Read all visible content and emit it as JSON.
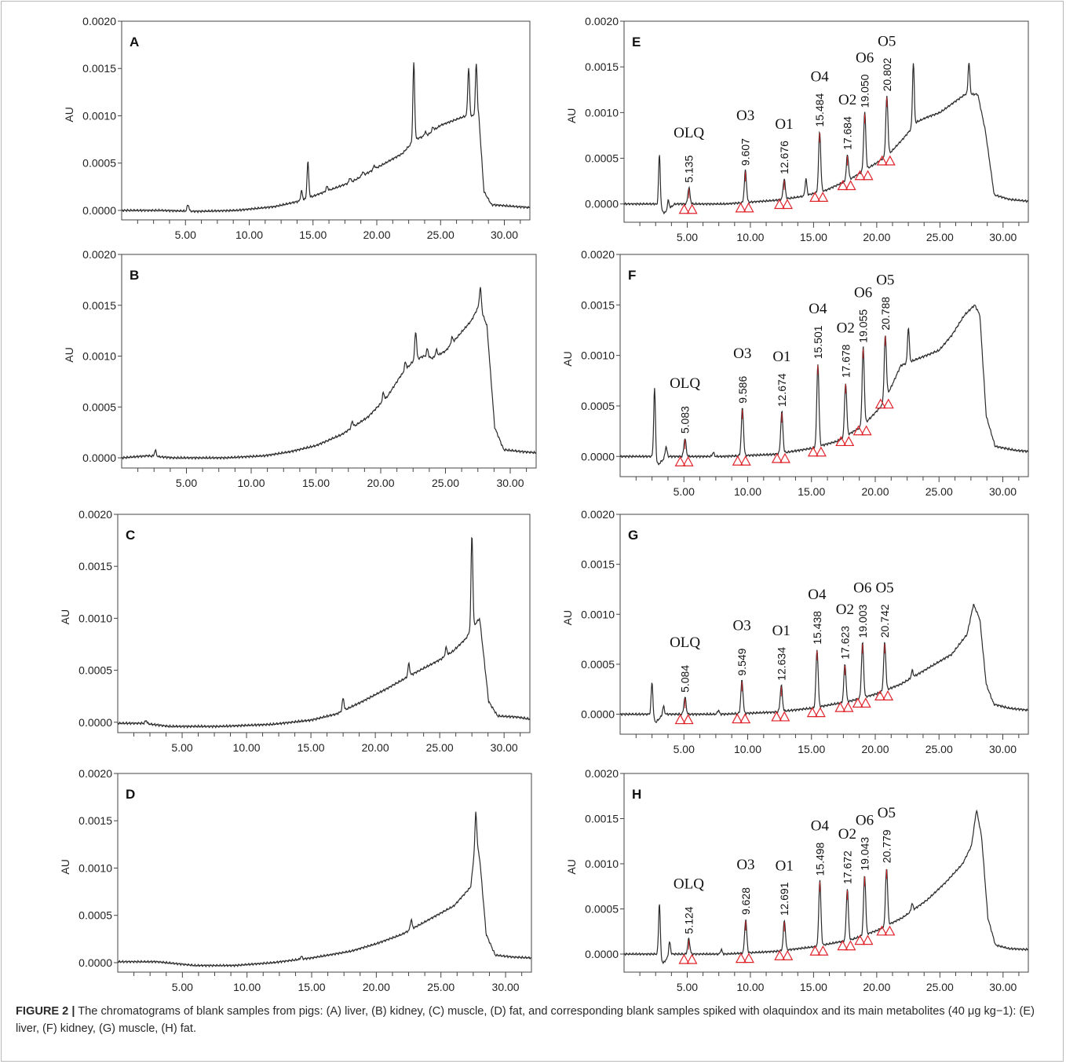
{
  "figure": {
    "caption_label": "FIGURE 2 |",
    "caption_text": "The chromatograms of blank samples from pigs: (A) liver, (B) kidney, (C) muscle, (D) fat, and corresponding blank samples spiked with olaquindox and its main metabolites (40 μg kg−1): (E) liver, (F) kidney, (G) muscle, (H) fat."
  },
  "colors": {
    "trace": "#2b2b2b",
    "marker": "#e0232b",
    "axis": "#444444"
  },
  "chart_data": [
    {
      "type": "line",
      "panel": "A",
      "ylabel": "AU",
      "xlim": [
        0,
        32
      ],
      "ylim": [
        -0.0001,
        0.002
      ],
      "xticks": [
        "5.00",
        "10.00",
        "15.00",
        "20.00",
        "25.00",
        "30.00"
      ],
      "yticks": [
        "0.0000",
        "0.0005",
        "0.0010",
        "0.0015",
        "0.0020"
      ],
      "baseline": [
        [
          0,
          0.0
        ],
        [
          3,
          0.0
        ],
        [
          6,
          -1e-05
        ],
        [
          9,
          0.0
        ],
        [
          12,
          4e-05
        ],
        [
          14,
          0.0001
        ],
        [
          15,
          0.00015
        ],
        [
          16,
          0.0002
        ],
        [
          18,
          0.0003
        ],
        [
          20,
          0.00045
        ],
        [
          22,
          0.0006
        ],
        [
          23,
          0.00075
        ],
        [
          24,
          0.0008
        ],
        [
          25,
          0.0009
        ],
        [
          26,
          0.00095
        ],
        [
          27,
          0.001
        ],
        [
          28,
          0.001
        ],
        [
          28.4,
          0.0002
        ],
        [
          29,
          6e-05
        ],
        [
          30,
          5e-05
        ],
        [
          32,
          3e-05
        ]
      ],
      "spikes": [
        [
          5.2,
          7e-05
        ],
        [
          14.1,
          0.0001
        ],
        [
          14.6,
          0.00038
        ],
        [
          16.1,
          5e-05
        ],
        [
          17.9,
          5e-05
        ],
        [
          18.9,
          4e-05
        ],
        [
          19.8,
          4e-05
        ],
        [
          22.9,
          0.00082
        ],
        [
          23.8,
          4e-05
        ],
        [
          24.4,
          4e-05
        ],
        [
          27.2,
          0.0005
        ],
        [
          27.8,
          0.00055
        ]
      ]
    },
    {
      "type": "line",
      "panel": "B",
      "ylabel": "AU",
      "xlim": [
        0,
        32
      ],
      "ylim": [
        -0.0001,
        0.002
      ],
      "xticks": [
        "5.00",
        "10.00",
        "15.00",
        "20.00",
        "25.00",
        "30.00"
      ],
      "yticks": [
        "0.0000",
        "0.0005",
        "0.0010",
        "0.0015",
        "0.0020"
      ],
      "baseline": [
        [
          0,
          0.0
        ],
        [
          2,
          2e-05
        ],
        [
          4,
          0.0
        ],
        [
          8,
          0.0
        ],
        [
          11,
          2e-05
        ],
        [
          13,
          6e-05
        ],
        [
          15,
          0.00012
        ],
        [
          17,
          0.00023
        ],
        [
          19,
          0.0004
        ],
        [
          20.5,
          0.0006
        ],
        [
          21.5,
          0.0008
        ],
        [
          22.5,
          0.00095
        ],
        [
          23.3,
          0.001
        ],
        [
          24,
          0.00098
        ],
        [
          25,
          0.00105
        ],
        [
          26,
          0.0012
        ],
        [
          27,
          0.00135
        ],
        [
          27.6,
          0.0015
        ],
        [
          28.2,
          0.0013
        ],
        [
          28.8,
          0.0003
        ],
        [
          29.5,
          8e-05
        ],
        [
          31,
          6e-05
        ],
        [
          32,
          5e-05
        ]
      ],
      "spikes": [
        [
          2.6,
          6e-05
        ],
        [
          17.8,
          6e-05
        ],
        [
          20.2,
          8e-05
        ],
        [
          21.9,
          8e-05
        ],
        [
          22.7,
          0.00028
        ],
        [
          23.6,
          8e-05
        ],
        [
          24.3,
          6e-05
        ],
        [
          25.5,
          6e-05
        ],
        [
          27.7,
          0.0002
        ]
      ]
    },
    {
      "type": "line",
      "panel": "C",
      "ylabel": "AU",
      "xlim": [
        0,
        32
      ],
      "ylim": [
        -0.0001,
        0.002
      ],
      "xticks": [
        "5.00",
        "10.00",
        "15.00",
        "20.00",
        "25.00",
        "30.00"
      ],
      "yticks": [
        "0.0000",
        "0.0005",
        "0.0010",
        "0.0015",
        "0.0020"
      ],
      "baseline": [
        [
          0,
          -1e-05
        ],
        [
          2,
          -1e-05
        ],
        [
          4,
          -4e-05
        ],
        [
          8,
          -4e-05
        ],
        [
          12,
          -2e-05
        ],
        [
          15,
          2e-05
        ],
        [
          17,
          8e-05
        ],
        [
          19,
          0.0002
        ],
        [
          21,
          0.00033
        ],
        [
          23,
          0.00047
        ],
        [
          25,
          0.0006
        ],
        [
          26,
          0.00068
        ],
        [
          27,
          0.0008
        ],
        [
          27.5,
          0.0009
        ],
        [
          28.1,
          0.001
        ],
        [
          28.8,
          0.0002
        ],
        [
          29.5,
          6e-05
        ],
        [
          31,
          5e-05
        ],
        [
          32,
          3e-05
        ]
      ],
      "spikes": [
        [
          2.2,
          3e-05
        ],
        [
          17.5,
          0.00012
        ],
        [
          22.6,
          0.00012
        ],
        [
          25.5,
          8e-05
        ],
        [
          27.5,
          0.0009
        ]
      ]
    },
    {
      "type": "line",
      "panel": "D",
      "ylabel": "AU",
      "xlim": [
        0,
        32
      ],
      "ylim": [
        -0.0001,
        0.002
      ],
      "xticks": [
        "5.00",
        "10.00",
        "15.00",
        "20.00",
        "25.00",
        "30.00"
      ],
      "yticks": [
        "0.0000",
        "0.0005",
        "0.0010",
        "0.0015",
        "0.0020"
      ],
      "baseline": [
        [
          0,
          1e-05
        ],
        [
          3,
          1e-05
        ],
        [
          6,
          -3e-05
        ],
        [
          9,
          -3e-05
        ],
        [
          12,
          0.0
        ],
        [
          15,
          5e-05
        ],
        [
          18,
          0.00012
        ],
        [
          20,
          0.0002
        ],
        [
          22,
          0.0003
        ],
        [
          24,
          0.00045
        ],
        [
          26,
          0.0006
        ],
        [
          27.3,
          0.0008
        ],
        [
          27.7,
          0.0013
        ],
        [
          28,
          0.0011
        ],
        [
          28.5,
          0.0003
        ],
        [
          29.2,
          8e-05
        ],
        [
          30.5,
          6e-05
        ],
        [
          32,
          5e-05
        ]
      ],
      "spikes": [
        [
          14.2,
          3e-05
        ],
        [
          22.7,
          0.0001
        ],
        [
          27.7,
          0.0003
        ]
      ]
    },
    {
      "type": "line",
      "panel": "E",
      "ylabel": "AU",
      "xlim": [
        0,
        32
      ],
      "ylim": [
        -0.0002,
        0.002
      ],
      "xticks": [
        "5.00",
        "10.00",
        "15.00",
        "20.00",
        "25.00",
        "30.00"
      ],
      "yticks": [
        "0.0000",
        "0.0005",
        "0.0010",
        "0.0015",
        "0.0020"
      ],
      "baseline": [
        [
          0,
          0.0
        ],
        [
          2.5,
          0.0
        ],
        [
          3.2,
          -0.0001
        ],
        [
          4,
          0.0
        ],
        [
          8,
          0.0
        ],
        [
          12,
          4e-05
        ],
        [
          14,
          8e-05
        ],
        [
          16,
          0.00015
        ],
        [
          18,
          0.00028
        ],
        [
          20,
          0.00045
        ],
        [
          21,
          0.00055
        ],
        [
          22,
          0.0007
        ],
        [
          23.2,
          0.0009
        ],
        [
          24,
          0.00095
        ],
        [
          25,
          0.001
        ],
        [
          26,
          0.0011
        ],
        [
          27,
          0.0012
        ],
        [
          28,
          0.0012
        ],
        [
          28.6,
          0.0008
        ],
        [
          29.3,
          0.0001
        ],
        [
          30.5,
          5e-05
        ],
        [
          32,
          3e-05
        ]
      ],
      "spikes": [
        [
          2.8,
          0.00058
        ],
        [
          3.5,
          0.0001
        ],
        [
          14.4,
          0.00018
        ],
        [
          22.9,
          0.0007
        ],
        [
          27.3,
          0.00035
        ]
      ],
      "peaks": [
        {
          "name": "OLQ",
          "rt": "5.135",
          "x": 5.135,
          "height": 0.00018
        },
        {
          "name": "O3",
          "rt": "9.607",
          "x": 9.607,
          "height": 0.00035
        },
        {
          "name": "O1",
          "rt": "12.676",
          "x": 12.676,
          "height": 0.00022
        },
        {
          "name": "O4",
          "rt": "15.484",
          "x": 15.484,
          "height": 0.00066
        },
        {
          "name": "O2",
          "rt": "17.684",
          "x": 17.684,
          "height": 0.00028
        },
        {
          "name": "O6",
          "rt": "19.050",
          "x": 19.05,
          "height": 0.00063
        },
        {
          "name": "O5",
          "rt": "20.802",
          "x": 20.802,
          "height": 0.00065
        }
      ]
    },
    {
      "type": "line",
      "panel": "F",
      "ylabel": "AU",
      "xlim": [
        0,
        32
      ],
      "ylim": [
        -0.0002,
        0.002
      ],
      "xticks": [
        "5.00",
        "10.00",
        "15.00",
        "20.00",
        "25.00",
        "30.00"
      ],
      "yticks": [
        "0.0000",
        "0.0005",
        "0.0010",
        "0.0015",
        "0.0020"
      ],
      "baseline": [
        [
          0,
          0.0
        ],
        [
          2.5,
          0.0
        ],
        [
          3,
          -8e-05
        ],
        [
          3.6,
          0.0
        ],
        [
          8,
          0.0
        ],
        [
          12,
          2e-05
        ],
        [
          15,
          8e-05
        ],
        [
          17,
          0.00015
        ],
        [
          19,
          0.0003
        ],
        [
          20.5,
          0.0005
        ],
        [
          21.3,
          0.0007
        ],
        [
          22,
          0.0009
        ],
        [
          23,
          0.00095
        ],
        [
          24,
          0.001
        ],
        [
          25,
          0.00105
        ],
        [
          26,
          0.0012
        ],
        [
          27,
          0.0014
        ],
        [
          27.8,
          0.0015
        ],
        [
          28.2,
          0.0014
        ],
        [
          28.7,
          0.0004
        ],
        [
          29.4,
          0.0001
        ],
        [
          31,
          6e-05
        ],
        [
          32,
          5e-05
        ]
      ],
      "spikes": [
        [
          2.7,
          0.0007
        ],
        [
          3.6,
          0.0001
        ],
        [
          7.3,
          4e-05
        ],
        [
          22.6,
          0.00035
        ]
      ],
      "peaks": [
        {
          "name": "OLQ",
          "rt": "5.083",
          "x": 5.083,
          "height": 0.00018
        },
        {
          "name": "O3",
          "rt": "9.586",
          "x": 9.586,
          "height": 0.00047
        },
        {
          "name": "O1",
          "rt": "12.674",
          "x": 12.674,
          "height": 0.00041
        },
        {
          "name": "O4",
          "rt": "15.501",
          "x": 15.501,
          "height": 0.00082
        },
        {
          "name": "O2",
          "rt": "17.678",
          "x": 17.678,
          "height": 0.00053
        },
        {
          "name": "O6",
          "rt": "19.055",
          "x": 19.055,
          "height": 0.00077
        },
        {
          "name": "O5",
          "rt": "20.788",
          "x": 20.788,
          "height": 0.00063
        }
      ]
    },
    {
      "type": "line",
      "panel": "G",
      "ylabel": "AU",
      "xlim": [
        0,
        32
      ],
      "ylim": [
        -0.0002,
        0.002
      ],
      "xticks": [
        "5.00",
        "10.00",
        "15.00",
        "20.00",
        "25.00",
        "30.00"
      ],
      "yticks": [
        "0.0000",
        "0.0005",
        "0.0010",
        "0.0015",
        "0.0020"
      ],
      "baseline": [
        [
          0,
          0.0
        ],
        [
          2.3,
          0.0
        ],
        [
          2.8,
          -8e-05
        ],
        [
          3.4,
          0.0
        ],
        [
          8,
          0.0
        ],
        [
          12,
          2e-05
        ],
        [
          15,
          6e-05
        ],
        [
          18,
          0.00013
        ],
        [
          20,
          0.0002
        ],
        [
          22,
          0.0003
        ],
        [
          24,
          0.00045
        ],
        [
          26,
          0.0006
        ],
        [
          27.2,
          0.0008
        ],
        [
          27.7,
          0.0011
        ],
        [
          28.2,
          0.00095
        ],
        [
          28.7,
          0.0003
        ],
        [
          29.3,
          0.0001
        ],
        [
          30.5,
          6e-05
        ],
        [
          32,
          4e-05
        ]
      ],
      "spikes": [
        [
          2.5,
          0.00035
        ],
        [
          3.4,
          8e-05
        ],
        [
          7.7,
          4e-05
        ],
        [
          22.9,
          7e-05
        ]
      ],
      "peaks": [
        {
          "name": "OLQ",
          "rt": "5.084",
          "x": 5.084,
          "height": 0.00017
        },
        {
          "name": "O3",
          "rt": "9.549",
          "x": 9.549,
          "height": 0.00033
        },
        {
          "name": "O1",
          "rt": "12.634",
          "x": 12.634,
          "height": 0.00026
        },
        {
          "name": "O4",
          "rt": "15.438",
          "x": 15.438,
          "height": 0.00058
        },
        {
          "name": "O2",
          "rt": "17.623",
          "x": 17.623,
          "height": 0.00038
        },
        {
          "name": "O6",
          "rt": "19.003",
          "x": 19.003,
          "height": 0.00055
        },
        {
          "name": "O5",
          "rt": "20.742",
          "x": 20.742,
          "height": 0.00048
        }
      ]
    },
    {
      "type": "line",
      "panel": "H",
      "ylabel": "AU",
      "xlim": [
        0,
        32
      ],
      "ylim": [
        -0.0002,
        0.002
      ],
      "xticks": [
        "5.00",
        "10.00",
        "15.00",
        "20.00",
        "25.00",
        "30.00"
      ],
      "yticks": [
        "0.0000",
        "0.0005",
        "0.0010",
        "0.0015",
        "0.0020"
      ],
      "baseline": [
        [
          0,
          0.0
        ],
        [
          2.6,
          0.0
        ],
        [
          3.1,
          -0.0001
        ],
        [
          3.7,
          0.0
        ],
        [
          8,
          0.0
        ],
        [
          12,
          3e-05
        ],
        [
          15,
          8e-05
        ],
        [
          18,
          0.00016
        ],
        [
          20,
          0.00026
        ],
        [
          22,
          0.0004
        ],
        [
          24,
          0.0006
        ],
        [
          25.5,
          0.0008
        ],
        [
          26.8,
          0.001
        ],
        [
          27.5,
          0.0012
        ],
        [
          27.9,
          0.0016
        ],
        [
          28.3,
          0.0013
        ],
        [
          28.8,
          0.0004
        ],
        [
          29.4,
          0.0001
        ],
        [
          30.5,
          6e-05
        ],
        [
          32,
          5e-05
        ]
      ],
      "spikes": [
        [
          2.8,
          0.0006
        ],
        [
          3.6,
          0.00015
        ],
        [
          7.7,
          5e-05
        ],
        [
          22.8,
          8e-05
        ]
      ],
      "peaks": [
        {
          "name": "OLQ",
          "rt": "5.124",
          "x": 5.124,
          "height": 0.00017
        },
        {
          "name": "O3",
          "rt": "9.628",
          "x": 9.628,
          "height": 0.00037
        },
        {
          "name": "O1",
          "rt": "12.691",
          "x": 12.691,
          "height": 0.00033
        },
        {
          "name": "O4",
          "rt": "15.498",
          "x": 15.498,
          "height": 0.00072
        },
        {
          "name": "O2",
          "rt": "17.672",
          "x": 17.672,
          "height": 0.00057
        },
        {
          "name": "O6",
          "rt": "19.043",
          "x": 19.043,
          "height": 0.00066
        },
        {
          "name": "O5",
          "rt": "20.779",
          "x": 20.779,
          "height": 0.00064
        }
      ]
    }
  ]
}
